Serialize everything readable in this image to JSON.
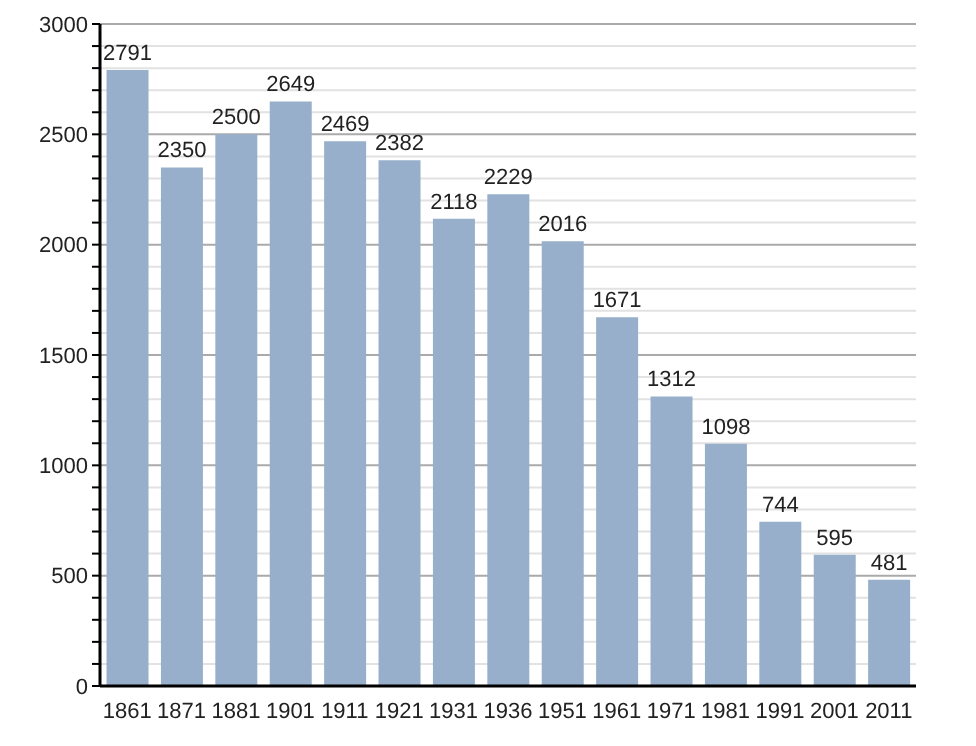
{
  "chart_data": {
    "type": "bar",
    "categories": [
      "1861",
      "1871",
      "1881",
      "1901",
      "1911",
      "1921",
      "1931",
      "1936",
      "1951",
      "1961",
      "1971",
      "1981",
      "1991",
      "2001",
      "2011"
    ],
    "values": [
      2791,
      2350,
      2500,
      2649,
      2469,
      2382,
      2118,
      2229,
      2016,
      1671,
      1312,
      1098,
      744,
      595,
      481
    ],
    "color": "#97afca",
    "data_labels": true,
    "grid": "y",
    "ylim": [
      0,
      3000
    ],
    "yticks": [
      0,
      {
        "value": 100,
        "label": null
      },
      {
        "value": 200,
        "label": null
      },
      {
        "value": 300,
        "label": null
      },
      {
        "value": 400,
        "label": null
      },
      500,
      {
        "value": 600,
        "label": null
      },
      {
        "value": 700,
        "label": null
      },
      {
        "value": 800,
        "label": null
      },
      {
        "value": 900,
        "label": null
      },
      1000,
      {
        "value": 1100,
        "label": null
      },
      {
        "value": 1200,
        "label": null
      },
      {
        "value": 1300,
        "label": null
      },
      {
        "value": 1400,
        "label": null
      },
      1500,
      {
        "value": 1600,
        "label": null
      },
      {
        "value": 1700,
        "label": null
      },
      {
        "value": 1800,
        "label": null
      },
      {
        "value": 1900,
        "label": null
      },
      2000,
      {
        "value": 2100,
        "label": null
      },
      {
        "value": 2200,
        "label": null
      },
      {
        "value": 2300,
        "label": null
      },
      {
        "value": 2400,
        "label": null
      },
      2500,
      {
        "value": 2600,
        "label": null
      },
      {
        "value": 2700,
        "label": null
      },
      {
        "value": 2800,
        "label": null
      },
      {
        "value": 2900,
        "label": null
      },
      3000
    ]
  }
}
